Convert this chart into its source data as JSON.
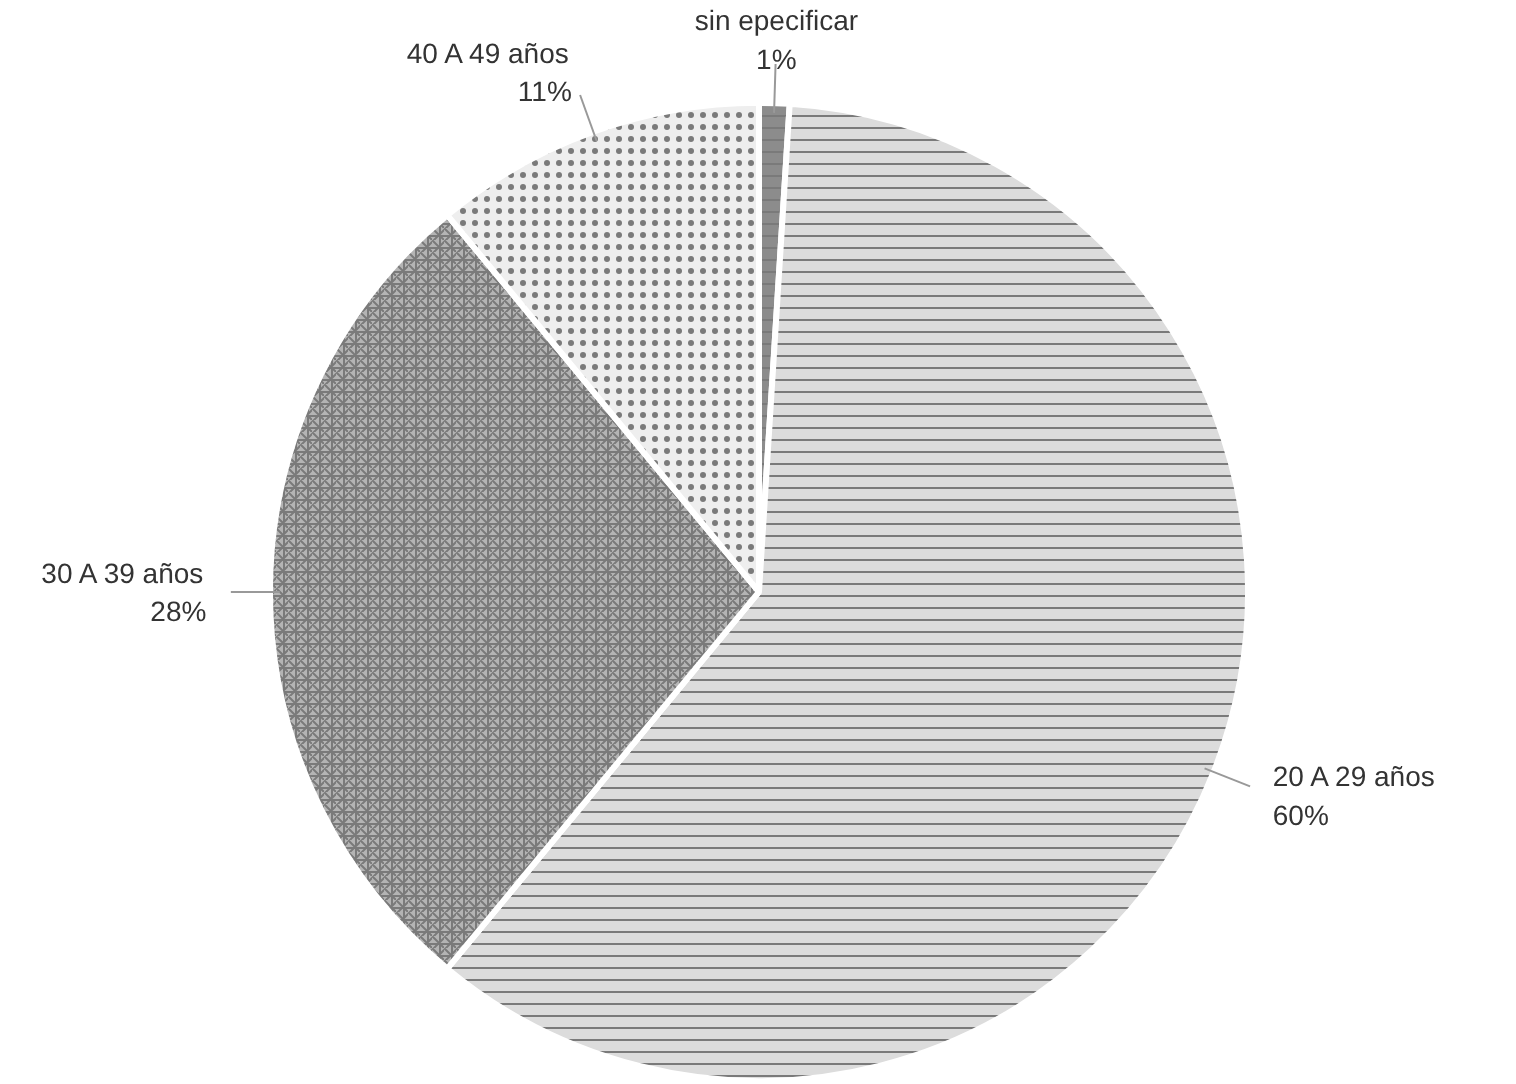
{
  "chart_data": {
    "type": "pie",
    "categories": [
      "sin epecificar",
      "20 A 29 años",
      "30 A 39 años",
      "40 A 49 años"
    ],
    "values": [
      1,
      60,
      28,
      11
    ],
    "colors": [
      "#8c8c8c",
      "#dcdcdc",
      "#b4b4b4",
      "#eeeeee"
    ],
    "value_labels": [
      "1%",
      "60%",
      "28%",
      "11%"
    ]
  }
}
